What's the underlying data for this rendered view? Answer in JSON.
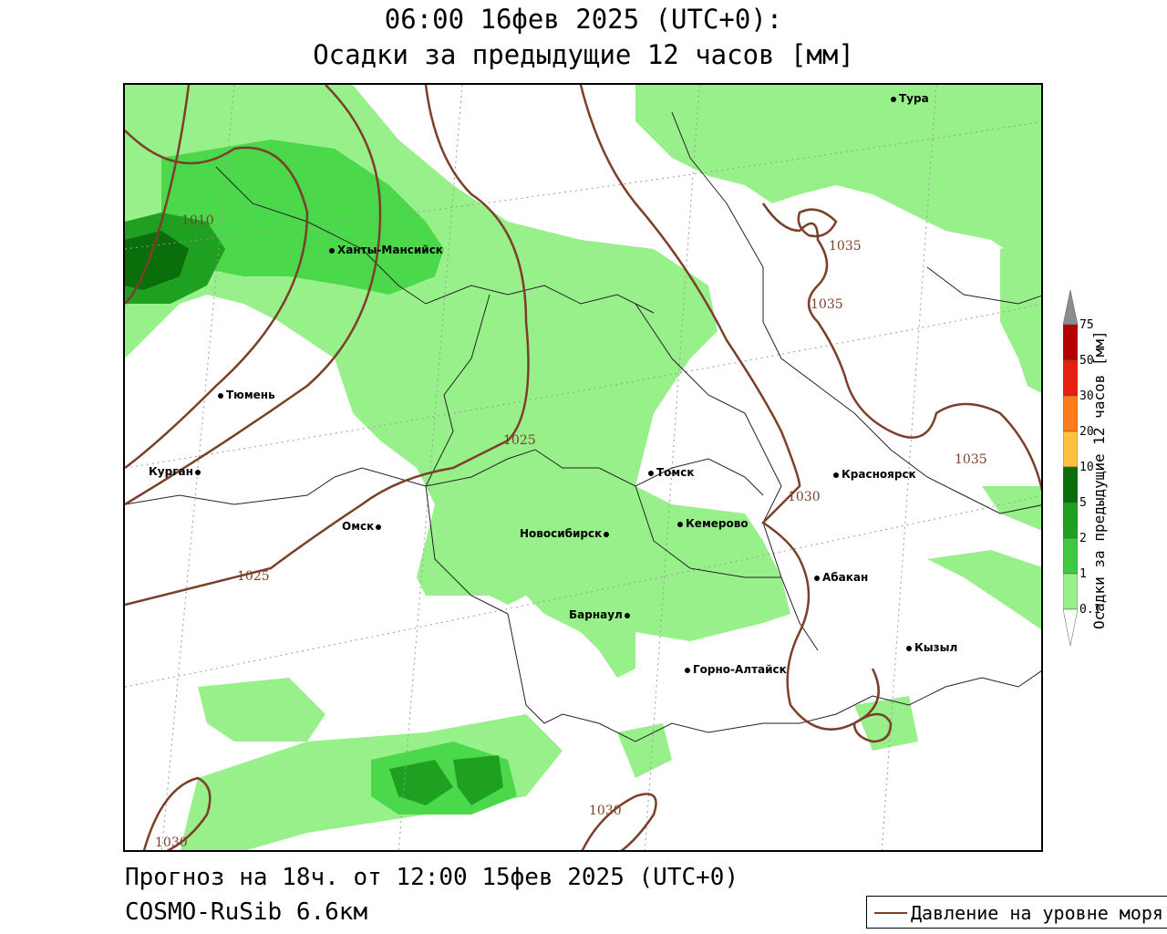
{
  "header": {
    "line1": "06:00 16фев 2025 (UTC+0):",
    "line2": "Осадки за предыдущие 12 часов [мм]"
  },
  "footer": {
    "forecast": "Прогноз на 18ч. от 12:00 15фев 2025 (UTC+0)",
    "model": "COSMO-RuSib 6.6км"
  },
  "legend": {
    "isobar_label": "Давление на уровне моря",
    "isobar_color": "#7b3f2a"
  },
  "colorbar": {
    "title": "Осадки за предыдущие 12 часов [мм]",
    "ticks": [
      "0.1",
      "1",
      "2",
      "5",
      "10",
      "20",
      "30",
      "50",
      "75"
    ],
    "colors": [
      "#98f08a",
      "#7ee06e",
      "#40c840",
      "#20a020",
      "#0a6e0a",
      "#ffc040",
      "#ff7c1a",
      "#e62010",
      "#b40000",
      "#8c8c8c"
    ]
  },
  "cities": [
    {
      "name": "Тура"
    },
    {
      "name": "Ханты-Мансийск"
    },
    {
      "name": "Тюмень"
    },
    {
      "name": "Курган"
    },
    {
      "name": "Омск"
    },
    {
      "name": "Новосибирск"
    },
    {
      "name": "Томск"
    },
    {
      "name": "Кемерово"
    },
    {
      "name": "Красноярск"
    },
    {
      "name": "Абакан"
    },
    {
      "name": "Барнаул"
    },
    {
      "name": "Горно-Алтайск"
    },
    {
      "name": "Кызыл"
    }
  ],
  "isobars": [
    "1010",
    "1025",
    "1025",
    "1030",
    "1030",
    "1030",
    "1035",
    "1035",
    "1035"
  ]
}
